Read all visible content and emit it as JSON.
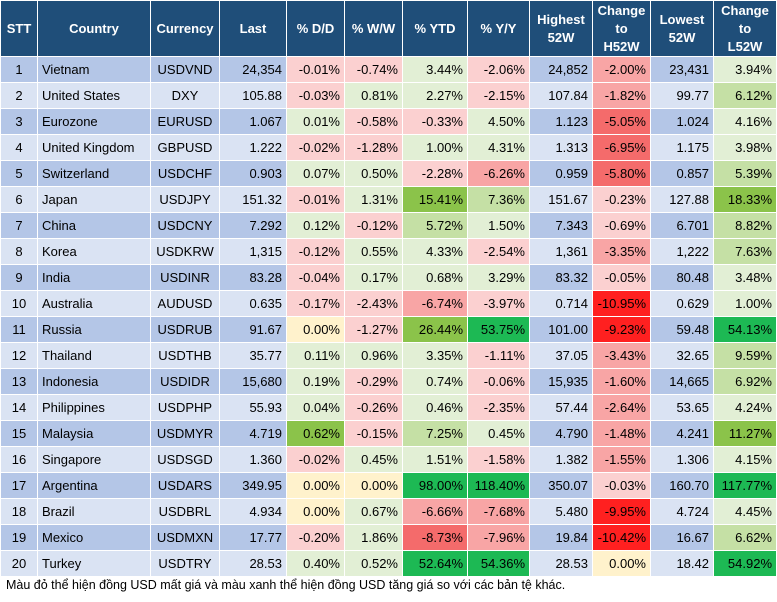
{
  "headers": {
    "stt": "STT",
    "country": "Country",
    "currency": "Currency",
    "last": "Last",
    "dd": "% D/D",
    "ww": "% W/W",
    "ytd": "% YTD",
    "yy": "% Y/Y",
    "high_l1": "Highest",
    "high_l2": "52W",
    "chh_l1": "Change",
    "chh_l2": "to",
    "chh_l3": "H52W",
    "low_l1": "Lowest",
    "low_l2": "52W",
    "chl_l1": "Change",
    "chl_l2": "to",
    "chl_l3": "L52W"
  },
  "colors": {
    "header_bg": "#1f4e79",
    "row_dark": "#b4c6e7",
    "row_light": "#dae3f3",
    "red_strong": "#ff2020",
    "red_medium": "#f46b6b",
    "red_light": "#f8a5a5",
    "red_pale": "#fbd0d0",
    "green_strong": "#1db954",
    "green_medium": "#8bc34a",
    "green_light": "#c5e0a5",
    "green_pale": "#e2efd5",
    "yellow_pale": "#fff2cc"
  },
  "rows": [
    {
      "stt": "1",
      "country": "Vietnam",
      "currency": "USDVND",
      "last": "24,354",
      "dd": "-0.01%",
      "ww": "-0.74%",
      "ytd": "3.44%",
      "yy": "-2.06%",
      "high": "24,852",
      "chh": "-2.00%",
      "low": "23,431",
      "chl": "3.94%"
    },
    {
      "stt": "2",
      "country": "United States",
      "currency": "DXY",
      "last": "105.88",
      "dd": "-0.03%",
      "ww": "0.81%",
      "ytd": "2.27%",
      "yy": "-2.15%",
      "high": "107.84",
      "chh": "-1.82%",
      "low": "99.77",
      "chl": "6.12%"
    },
    {
      "stt": "3",
      "country": "Eurozone",
      "currency": "EURUSD",
      "last": "1.067",
      "dd": "0.01%",
      "ww": "-0.58%",
      "ytd": "-0.33%",
      "yy": "4.50%",
      "high": "1.123",
      "chh": "-5.05%",
      "low": "1.024",
      "chl": "4.16%"
    },
    {
      "stt": "4",
      "country": "United Kingdom",
      "currency": "GBPUSD",
      "last": "1.222",
      "dd": "-0.02%",
      "ww": "-1.28%",
      "ytd": "1.00%",
      "yy": "4.31%",
      "high": "1.313",
      "chh": "-6.95%",
      "low": "1.175",
      "chl": "3.98%"
    },
    {
      "stt": "5",
      "country": "Switzerland",
      "currency": "USDCHF",
      "last": "0.903",
      "dd": "0.07%",
      "ww": "0.50%",
      "ytd": "-2.28%",
      "yy": "-6.26%",
      "high": "0.959",
      "chh": "-5.80%",
      "low": "0.857",
      "chl": "5.39%"
    },
    {
      "stt": "6",
      "country": "Japan",
      "currency": "USDJPY",
      "last": "151.32",
      "dd": "-0.01%",
      "ww": "1.31%",
      "ytd": "15.41%",
      "yy": "7.36%",
      "high": "151.67",
      "chh": "-0.23%",
      "low": "127.88",
      "chl": "18.33%"
    },
    {
      "stt": "7",
      "country": "China",
      "currency": "USDCNY",
      "last": "7.292",
      "dd": "0.12%",
      "ww": "-0.12%",
      "ytd": "5.72%",
      "yy": "1.50%",
      "high": "7.343",
      "chh": "-0.69%",
      "low": "6.701",
      "chl": "8.82%"
    },
    {
      "stt": "8",
      "country": "Korea",
      "currency": "USDKRW",
      "last": "1,315",
      "dd": "-0.12%",
      "ww": "0.55%",
      "ytd": "4.33%",
      "yy": "-2.54%",
      "high": "1,361",
      "chh": "-3.35%",
      "low": "1,222",
      "chl": "7.63%"
    },
    {
      "stt": "9",
      "country": "India",
      "currency": "USDINR",
      "last": "83.28",
      "dd": "-0.04%",
      "ww": "0.17%",
      "ytd": "0.68%",
      "yy": "3.29%",
      "high": "83.32",
      "chh": "-0.05%",
      "low": "80.48",
      "chl": "3.48%"
    },
    {
      "stt": "10",
      "country": "Australia",
      "currency": "AUDUSD",
      "last": "0.635",
      "dd": "-0.17%",
      "ww": "-2.43%",
      "ytd": "-6.74%",
      "yy": "-3.97%",
      "high": "0.714",
      "chh": "-10.95%",
      "low": "0.629",
      "chl": "1.00%"
    },
    {
      "stt": "11",
      "country": "Russia",
      "currency": "USDRUB",
      "last": "91.67",
      "dd": "0.00%",
      "ww": "-1.27%",
      "ytd": "26.44%",
      "yy": "53.75%",
      "high": "101.00",
      "chh": "-9.23%",
      "low": "59.48",
      "chl": "54.13%"
    },
    {
      "stt": "12",
      "country": "Thailand",
      "currency": "USDTHB",
      "last": "35.77",
      "dd": "0.11%",
      "ww": "0.96%",
      "ytd": "3.35%",
      "yy": "-1.11%",
      "high": "37.05",
      "chh": "-3.43%",
      "low": "32.65",
      "chl": "9.59%"
    },
    {
      "stt": "13",
      "country": "Indonesia",
      "currency": "USDIDR",
      "last": "15,680",
      "dd": "0.19%",
      "ww": "-0.29%",
      "ytd": "0.74%",
      "yy": "-0.06%",
      "high": "15,935",
      "chh": "-1.60%",
      "low": "14,665",
      "chl": "6.92%"
    },
    {
      "stt": "14",
      "country": "Philippines",
      "currency": "USDPHP",
      "last": "55.93",
      "dd": "0.04%",
      "ww": "-0.26%",
      "ytd": "0.46%",
      "yy": "-2.35%",
      "high": "57.44",
      "chh": "-2.64%",
      "low": "53.65",
      "chl": "4.24%"
    },
    {
      "stt": "15",
      "country": "Malaysia",
      "currency": "USDMYR",
      "last": "4.719",
      "dd": "0.62%",
      "ww": "-0.15%",
      "ytd": "7.25%",
      "yy": "0.45%",
      "high": "4.790",
      "chh": "-1.48%",
      "low": "4.241",
      "chl": "11.27%"
    },
    {
      "stt": "16",
      "country": "Singapore",
      "currency": "USDSGD",
      "last": "1.360",
      "dd": "-0.02%",
      "ww": "0.45%",
      "ytd": "1.51%",
      "yy": "-1.58%",
      "high": "1.382",
      "chh": "-1.55%",
      "low": "1.306",
      "chl": "4.15%"
    },
    {
      "stt": "17",
      "country": "Argentina",
      "currency": "USDARS",
      "last": "349.95",
      "dd": "0.00%",
      "ww": "0.00%",
      "ytd": "98.00%",
      "yy": "118.40%",
      "high": "350.07",
      "chh": "-0.03%",
      "low": "160.70",
      "chl": "117.77%"
    },
    {
      "stt": "18",
      "country": "Brazil",
      "currency": "USDBRL",
      "last": "4.934",
      "dd": "0.00%",
      "ww": "0.67%",
      "ytd": "-6.66%",
      "yy": "-7.68%",
      "high": "5.480",
      "chh": "-9.95%",
      "low": "4.724",
      "chl": "4.45%"
    },
    {
      "stt": "19",
      "country": "Mexico",
      "currency": "USDMXN",
      "last": "17.77",
      "dd": "-0.20%",
      "ww": "1.86%",
      "ytd": "-8.73%",
      "yy": "-7.96%",
      "high": "19.84",
      "chh": "-10.42%",
      "low": "16.67",
      "chl": "6.62%"
    },
    {
      "stt": "20",
      "country": "Turkey",
      "currency": "USDTRY",
      "last": "28.53",
      "dd": "0.40%",
      "ww": "0.52%",
      "ytd": "52.64%",
      "yy": "54.36%",
      "high": "28.53",
      "chh": "0.00%",
      "low": "18.42",
      "chl": "54.92%"
    }
  ],
  "footnote": "Màu đỏ thể hiện đồng USD mất giá và màu xanh thể hiện đồng USD tăng giá so với các bản tệ khác."
}
